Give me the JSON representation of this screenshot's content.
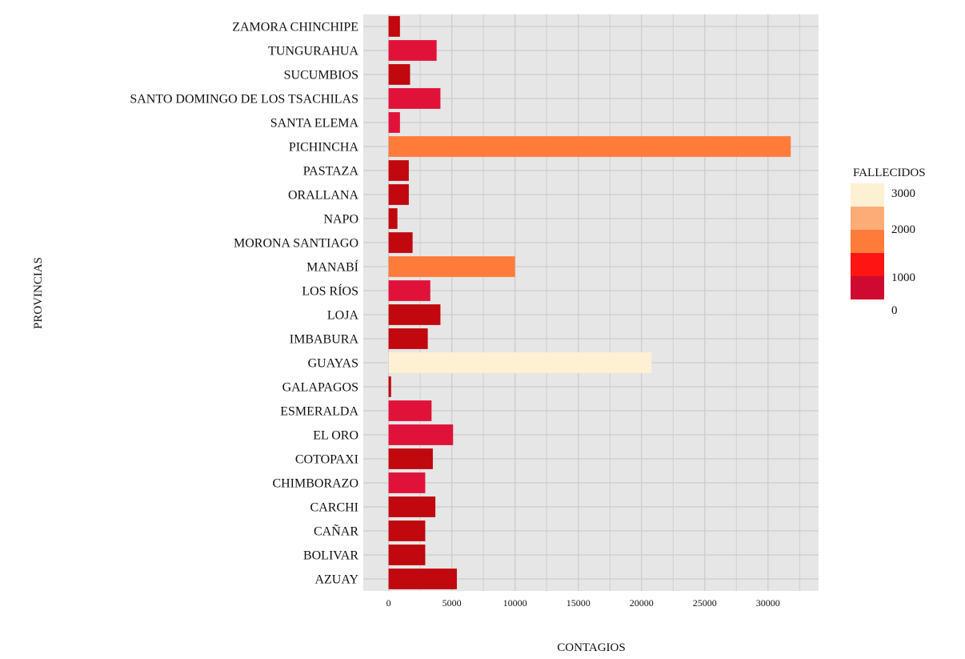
{
  "chart_data": {
    "type": "bar",
    "orientation": "horizontal",
    "xlabel": "CONTAGIOS",
    "ylabel": "PROVINCIAS",
    "xlim": [
      -2000,
      34000
    ],
    "x_ticks": [
      0,
      5000,
      10000,
      15000,
      20000,
      25000,
      30000
    ],
    "grid": true,
    "categories": [
      "ZAMORA CHINCHIPE",
      "TUNGURAHUA",
      "SUCUMBIOS",
      "SANTO DOMINGO DE LOS TSACHILAS",
      "SANTA ELEMA",
      "PICHINCHA",
      "PASTAZA",
      "ORALLANA",
      "NAPO",
      "MORONA SANTIAGO",
      "MANABÍ",
      "LOS RÍOS",
      "LOJA",
      "IMBABURA",
      "GUAYAS",
      "GALAPAGOS",
      "ESMERALDA",
      "EL ORO",
      "COTOPAXI",
      "CHIMBORAZO",
      "CARCHI",
      "CAÑAR",
      "BOLIVAR",
      "AZUAY"
    ],
    "values": [
      900,
      3800,
      1700,
      4100,
      900,
      31800,
      1600,
      1600,
      700,
      1900,
      10000,
      3300,
      4100,
      3100,
      20800,
      200,
      3400,
      5100,
      3500,
      2900,
      3700,
      2900,
      2900,
      5400
    ],
    "fallecidos_band": [
      0,
      1,
      0,
      1,
      1,
      2,
      0,
      0,
      0,
      0,
      2,
      1,
      0,
      0,
      3,
      0,
      1,
      1,
      0,
      1,
      0,
      0,
      0,
      0
    ],
    "legend": {
      "title": "FALLECIDOS",
      "placement": "right",
      "labels": [
        "3000",
        "2000",
        "1000",
        "0"
      ],
      "colors": [
        "#c0080e",
        "#e0123a",
        "#ff7b3a",
        "#fef0d2"
      ],
      "swatches": [
        "#fef0d2",
        "#fdac78",
        "#ff7b3a",
        "#ff1414",
        "#cf0a30"
      ]
    },
    "panel_bg": "#e6e6e6",
    "grid_color": "#cccccc"
  }
}
